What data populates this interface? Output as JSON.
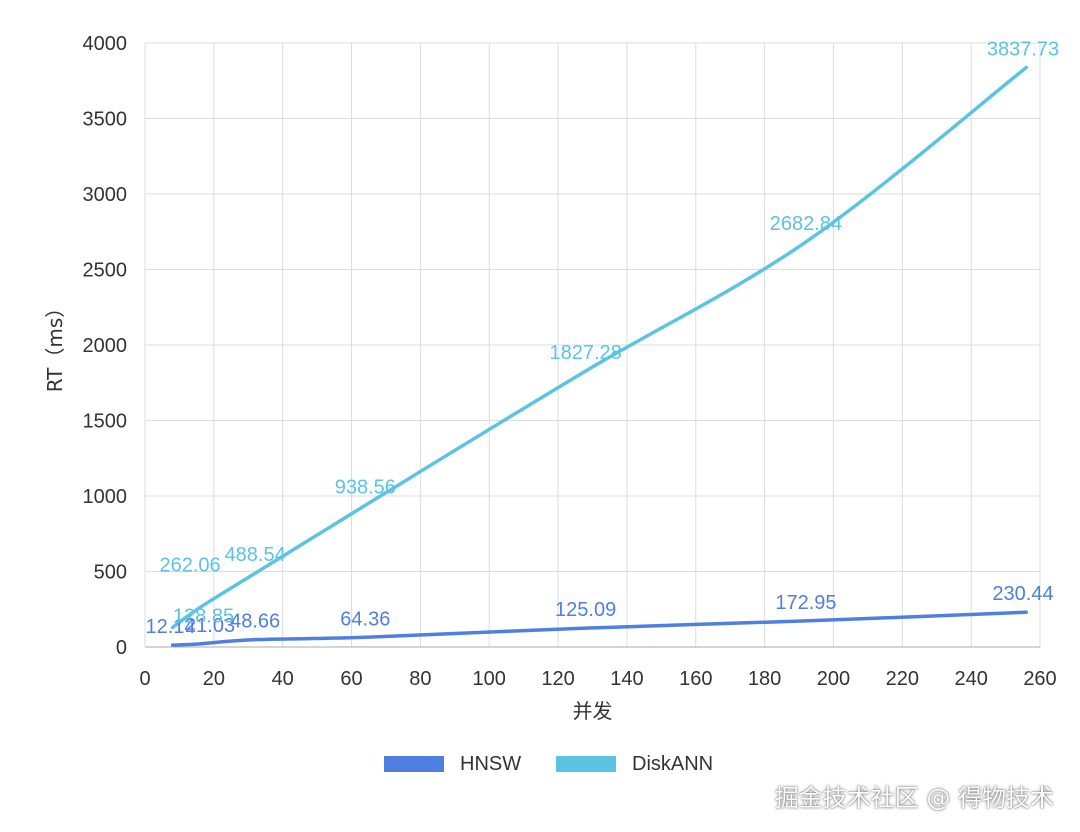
{
  "chart_data": {
    "type": "line",
    "xlabel": "并发",
    "ylabel": "RT（ms）",
    "xlim": [
      0,
      260
    ],
    "ylim": [
      0,
      4000
    ],
    "x_ticks": [
      0,
      20,
      40,
      60,
      80,
      100,
      120,
      140,
      160,
      180,
      200,
      220,
      240,
      260
    ],
    "y_ticks": [
      0,
      500,
      1000,
      1500,
      2000,
      2500,
      3000,
      3500,
      4000
    ],
    "grid": true,
    "legend_position": "bottom",
    "series": [
      {
        "name": "HNSW",
        "color": "#4f7fe0",
        "x": [
          8,
          16,
          32,
          64,
          128,
          192,
          256
        ],
        "y": [
          12.14,
          21.03,
          48.66,
          64.36,
          125.09,
          172.95,
          230.44
        ],
        "labels": [
          "12.14",
          "21.03",
          "48.66",
          "64.36",
          "125.09",
          "172.95",
          "230.44"
        ]
      },
      {
        "name": "DiskANN",
        "color": "#5bc3e3",
        "x": [
          8,
          16,
          32,
          64,
          128,
          192,
          256
        ],
        "y": [
          128.85,
          262.06,
          488.54,
          938.56,
          1827.28,
          2682.84,
          3837.73
        ],
        "labels": [
          "128.85",
          "262.06",
          "488.54",
          "938.56",
          "1827.28",
          "2682.84",
          "3837.73"
        ]
      }
    ]
  },
  "watermark": "掘金技术社区 @ 得物技术"
}
